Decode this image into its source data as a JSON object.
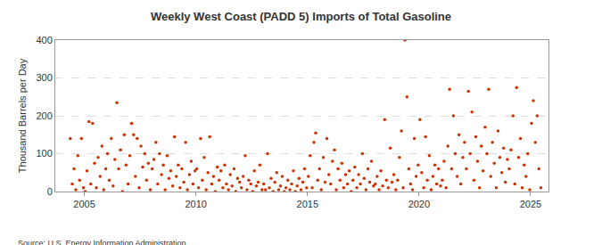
{
  "chart_data": {
    "type": "scatter",
    "title": "Weekly West Coast (PADD 5) Imports of Total Gasoline",
    "y_label": "Thousand Barrels per Day",
    "annotations": [
      "Source: U.S. Energy Information Administration"
    ],
    "color": "#cc3300",
    "marker": "circle",
    "grid": true,
    "xlim": [
      2003.7,
      2025.8
    ],
    "xticks": [
      2005,
      2010,
      2015,
      2020,
      2025
    ],
    "ylim": [
      0,
      400
    ],
    "yticks": [
      0,
      100,
      200,
      300,
      400
    ],
    "x": [
      2004.37,
      2004.46,
      2004.54,
      2004.62,
      2004.71,
      2004.79,
      2004.87,
      2004.96,
      2005.04,
      2005.12,
      2005.21,
      2005.29,
      2005.37,
      2005.46,
      2005.54,
      2005.62,
      2005.71,
      2005.79,
      2005.87,
      2005.96,
      2006.04,
      2006.12,
      2006.21,
      2006.29,
      2006.37,
      2006.46,
      2006.54,
      2006.62,
      2006.71,
      2006.79,
      2006.87,
      2006.96,
      2007.04,
      2007.12,
      2007.21,
      2007.29,
      2007.37,
      2007.46,
      2007.54,
      2007.62,
      2007.71,
      2007.79,
      2007.87,
      2007.96,
      2008.04,
      2008.12,
      2008.21,
      2008.29,
      2008.37,
      2008.46,
      2008.54,
      2008.62,
      2008.71,
      2008.79,
      2008.87,
      2008.96,
      2009.04,
      2009.12,
      2009.21,
      2009.29,
      2009.37,
      2009.46,
      2009.54,
      2009.62,
      2009.71,
      2009.79,
      2009.87,
      2009.96,
      2010.04,
      2010.12,
      2010.21,
      2010.29,
      2010.37,
      2010.46,
      2010.54,
      2010.62,
      2010.71,
      2010.79,
      2010.87,
      2010.96,
      2011.04,
      2011.12,
      2011.21,
      2011.29,
      2011.37,
      2011.46,
      2011.54,
      2011.62,
      2011.71,
      2011.79,
      2011.87,
      2011.96,
      2012.04,
      2012.12,
      2012.21,
      2012.29,
      2012.37,
      2012.46,
      2012.54,
      2012.62,
      2012.71,
      2012.79,
      2012.87,
      2012.96,
      2013.04,
      2013.12,
      2013.21,
      2013.29,
      2013.37,
      2013.46,
      2013.54,
      2013.62,
      2013.71,
      2013.79,
      2013.87,
      2013.96,
      2014.04,
      2014.12,
      2014.21,
      2014.29,
      2014.37,
      2014.46,
      2014.54,
      2014.62,
      2014.71,
      2014.79,
      2014.87,
      2014.96,
      2015.04,
      2015.12,
      2015.21,
      2015.29,
      2015.37,
      2015.46,
      2015.54,
      2015.62,
      2015.71,
      2015.79,
      2015.87,
      2015.96,
      2016.04,
      2016.12,
      2016.21,
      2016.29,
      2016.37,
      2016.46,
      2016.54,
      2016.62,
      2016.71,
      2016.79,
      2016.87,
      2016.96,
      2017.04,
      2017.12,
      2017.21,
      2017.29,
      2017.37,
      2017.46,
      2017.54,
      2017.62,
      2017.71,
      2017.79,
      2017.87,
      2017.96,
      2018.04,
      2018.12,
      2018.21,
      2018.29,
      2018.37,
      2018.46,
      2018.54,
      2018.62,
      2018.71,
      2018.79,
      2018.87,
      2018.96,
      2019.04,
      2019.12,
      2019.21,
      2019.29,
      2019.37,
      2019.46,
      2019.54,
      2019.62,
      2019.71,
      2019.79,
      2019.87,
      2019.96,
      2020.04,
      2020.12,
      2020.21,
      2020.29,
      2020.37,
      2020.46,
      2020.54,
      2020.62,
      2020.71,
      2020.79,
      2020.87,
      2020.96,
      2021.04,
      2021.12,
      2021.21,
      2021.29,
      2021.37,
      2021.46,
      2021.54,
      2021.62,
      2021.71,
      2021.79,
      2021.87,
      2021.96,
      2022.04,
      2022.12,
      2022.21,
      2022.29,
      2022.37,
      2022.46,
      2022.54,
      2022.62,
      2022.71,
      2022.79,
      2022.87,
      2022.96,
      2023.04,
      2023.12,
      2023.21,
      2023.29,
      2023.37,
      2023.46,
      2023.54,
      2023.62,
      2023.71,
      2023.79,
      2023.87,
      2023.96,
      2024.04,
      2024.12,
      2024.21,
      2024.29,
      2024.37,
      2024.46,
      2024.54,
      2024.62,
      2024.71,
      2024.79,
      2024.87,
      2024.96,
      2025.04,
      2025.12,
      2025.21,
      2025.29,
      2025.37,
      2025.46
    ],
    "values": [
      140,
      20,
      60,
      5,
      95,
      30,
      140,
      10,
      0,
      55,
      185,
      20,
      180,
      75,
      10,
      90,
      40,
      120,
      5,
      60,
      100,
      30,
      140,
      15,
      85,
      235,
      60,
      110,
      0,
      150,
      70,
      20,
      95,
      180,
      150,
      40,
      140,
      10,
      120,
      65,
      100,
      30,
      75,
      5,
      60,
      85,
      130,
      20,
      100,
      45,
      70,
      5,
      95,
      35,
      55,
      15,
      145,
      40,
      70,
      10,
      60,
      25,
      130,
      5,
      45,
      80,
      20,
      55,
      60,
      10,
      140,
      30,
      90,
      5,
      50,
      145,
      20,
      40,
      0,
      65,
      30,
      55,
      10,
      70,
      20,
      5,
      45,
      15,
      60,
      0,
      35,
      25,
      10,
      40,
      95,
      5,
      30,
      20,
      0,
      55,
      15,
      25,
      70,
      5,
      20,
      5,
      100,
      10,
      35,
      0,
      25,
      50,
      5,
      15,
      40,
      0,
      10,
      30,
      5,
      20,
      55,
      0,
      15,
      35,
      5,
      25,
      60,
      10,
      40,
      95,
      10,
      130,
      155,
      30,
      60,
      5,
      90,
      25,
      140,
      45,
      20,
      80,
      110,
      5,
      60,
      30,
      75,
      10,
      45,
      20,
      55,
      0,
      30,
      65,
      10,
      45,
      20,
      100,
      35,
      5,
      60,
      25,
      80,
      15,
      20,
      40,
      5,
      55,
      15,
      190,
      30,
      10,
      115,
      25,
      45,
      5,
      30,
      90,
      160,
      10,
      400,
      250,
      60,
      20,
      5,
      140,
      40,
      70,
      190,
      50,
      10,
      145,
      30,
      95,
      5,
      40,
      70,
      20,
      60,
      15,
      30,
      80,
      10,
      120,
      270,
      60,
      200,
      100,
      40,
      150,
      20,
      90,
      130,
      60,
      265,
      100,
      210,
      30,
      145,
      80,
      10,
      120,
      55,
      170,
      100,
      270,
      40,
      130,
      75,
      10,
      160,
      90,
      50,
      115,
      25,
      85,
      60,
      110,
      200,
      20,
      275,
      90,
      140,
      10,
      70,
      40,
      100,
      5,
      180,
      240,
      130,
      200,
      60,
      10
    ]
  }
}
